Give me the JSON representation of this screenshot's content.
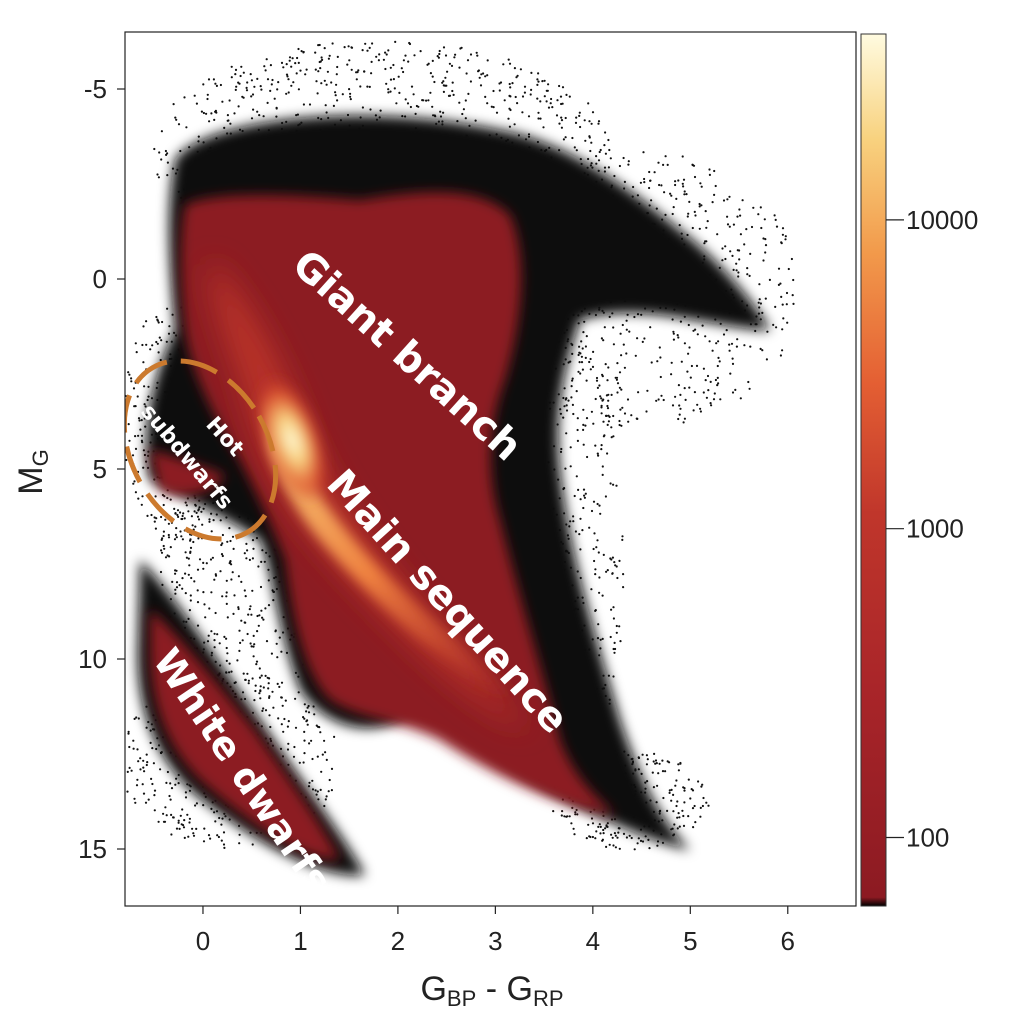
{
  "chart_data": {
    "type": "heatmap",
    "title": "",
    "xlabel_main": "G",
    "xlabel_sub1": "BP",
    "xlabel_mid": " - G",
    "xlabel_sub2": "RP",
    "ylabel_main": "M",
    "ylabel_sub": "G",
    "xlim": [
      -0.8,
      6.7
    ],
    "ylim": [
      -6.5,
      16.5
    ],
    "y_inverted": true,
    "x_ticks": [
      0,
      1,
      2,
      3,
      4,
      5,
      6
    ],
    "x_tick_labels": [
      "0",
      "1",
      "2",
      "3",
      "4",
      "5",
      "6"
    ],
    "y_ticks": [
      -5,
      0,
      5,
      10,
      15
    ],
    "y_tick_labels": [
      "-5",
      "0",
      "5",
      "10",
      "15"
    ],
    "colorbar": {
      "scale": "log",
      "ticks": [
        100,
        1000,
        10000
      ],
      "tick_labels": [
        "100",
        "1000",
        "10000"
      ],
      "colors": [
        "#8c1a22",
        "#c0362b",
        "#e45f33",
        "#f29a4b",
        "#f8d27f",
        "#fffbe0"
      ]
    },
    "regions": [
      {
        "label": "Giant branch",
        "x": 2.1,
        "y": 2.0
      },
      {
        "label": "Main sequence",
        "x": 2.3,
        "y": 8.0
      },
      {
        "label": "White dwarfs",
        "x": 0.4,
        "y": 12.0
      },
      {
        "label_line1": "Hot",
        "label_line2": "subdwarfs",
        "x": 0.1,
        "y": 4.8
      }
    ],
    "annotation_ellipse_color": "#cc7a2e"
  }
}
